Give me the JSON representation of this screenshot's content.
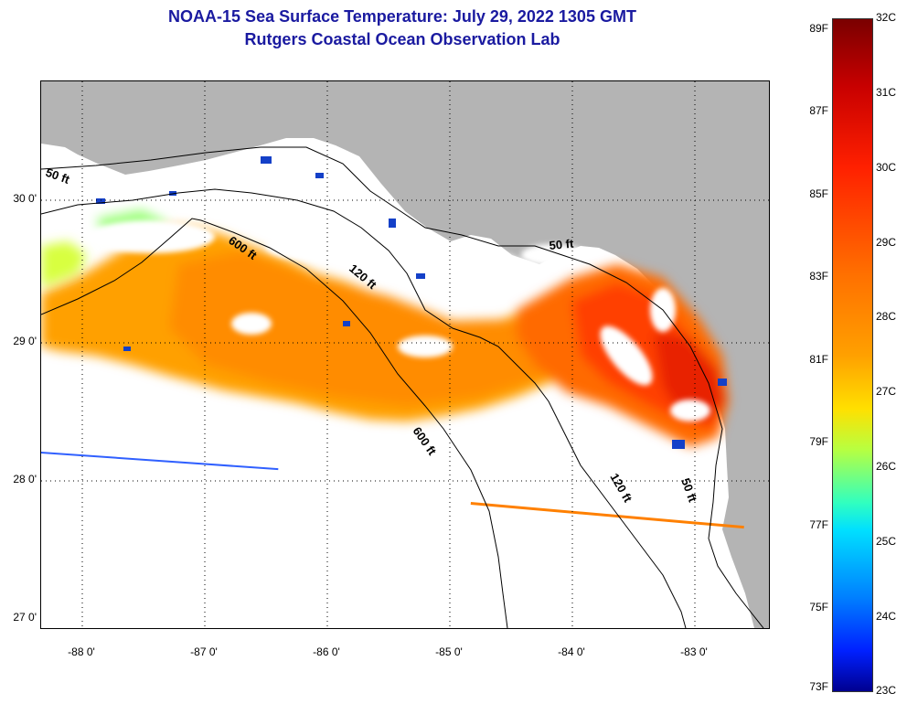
{
  "title": {
    "line1": "NOAA-15 Sea Surface Temperature:  July 29, 2022 1305 GMT",
    "line2": "Rutgers Coastal Ocean Observation Lab"
  },
  "axes": {
    "lat_labels": [
      "30 0'",
      "29 0'",
      "28 0'",
      "27 0'"
    ],
    "lon_labels": [
      "-88 0'",
      "-87 0'",
      "-86 0'",
      "-85 0'",
      "-84 0'",
      "-83 0'"
    ]
  },
  "contours": {
    "labels": [
      "50 ft",
      "600 ft",
      "120 ft",
      "50 ft",
      "600 ft",
      "120 ft",
      "50 ft"
    ]
  },
  "colorbar": {
    "fahrenheit": [
      "89F",
      "87F",
      "85F",
      "83F",
      "81F",
      "79F",
      "77F",
      "75F",
      "73F"
    ],
    "celsius": [
      "32C",
      "31C",
      "30C",
      "29C",
      "28C",
      "27C",
      "26C",
      "25C",
      "24C",
      "23C"
    ]
  },
  "colors": {
    "title": "#1a1aa0",
    "land": "#b4b4b4",
    "warm": "#ff8c00",
    "hot": "#e83000"
  }
}
